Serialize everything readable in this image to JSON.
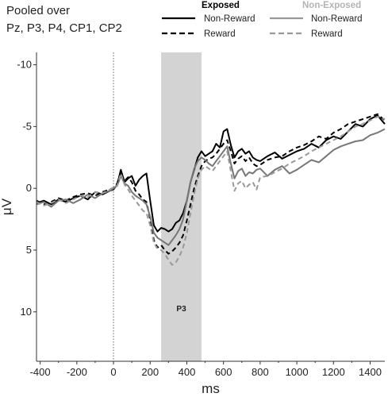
{
  "chart_data": {
    "type": "line",
    "title_lines": [
      "Pooled over",
      "Pz, P3, P4, CP1, CP2"
    ],
    "xlabel": "ms",
    "ylabel": "μV",
    "xlim": [
      -420,
      1480
    ],
    "ylim": [
      14,
      -11
    ],
    "y_inverted": true,
    "x_ticks": [
      -400,
      -200,
      0,
      200,
      400,
      600,
      800,
      1000,
      1200,
      1400
    ],
    "y_ticks": [
      -10,
      -5,
      0,
      5,
      10
    ],
    "shaded_band": {
      "x_start": 260,
      "x_end": 480,
      "label": "P3",
      "color": "#d3d3d3"
    },
    "vertical_marker_x": 0,
    "grid": false,
    "legend": {
      "placement": "top-right",
      "groups": [
        {
          "heading": "Exposed",
          "heading_color": "#000000",
          "entries": [
            {
              "label": "Non-Reward",
              "style": "solid"
            },
            {
              "label": "Reward",
              "style": "dashed"
            }
          ]
        },
        {
          "heading": "Non-Exposed",
          "heading_color": "#b3b3b3",
          "entries": [
            {
              "label": "Non-Reward",
              "style": "solid"
            },
            {
              "label": "Reward",
              "style": "dashed"
            }
          ]
        }
      ]
    },
    "series": [
      {
        "group": "Exposed",
        "condition": "Non-Reward",
        "color": "#000000",
        "style": "solid",
        "x": [
          -420,
          -380,
          -340,
          -300,
          -260,
          -220,
          -180,
          -140,
          -100,
          -60,
          -20,
          0,
          20,
          40,
          60,
          80,
          100,
          120,
          140,
          160,
          180,
          200,
          220,
          240,
          260,
          280,
          300,
          320,
          340,
          360,
          380,
          400,
          420,
          440,
          460,
          480,
          500,
          520,
          540,
          560,
          580,
          600,
          620,
          640,
          660,
          680,
          700,
          720,
          740,
          760,
          780,
          800,
          840,
          880,
          920,
          960,
          1000,
          1040,
          1080,
          1120,
          1160,
          1200,
          1240,
          1280,
          1320,
          1360,
          1400,
          1440,
          1480
        ],
        "y": [
          1.2,
          1.0,
          1.3,
          0.9,
          1.1,
          0.8,
          0.6,
          0.9,
          0.3,
          0.5,
          0.2,
          0.1,
          -0.3,
          -1.5,
          -0.5,
          -0.8,
          -1.0,
          -0.2,
          -0.7,
          -1.0,
          -1.2,
          1.0,
          3.0,
          3.5,
          3.2,
          3.3,
          3.5,
          3.3,
          2.8,
          2.6,
          2.0,
          1.0,
          -0.5,
          -1.5,
          -2.5,
          -3.0,
          -2.6,
          -2.8,
          -3.0,
          -3.6,
          -3.3,
          -4.6,
          -4.8,
          -3.5,
          -2.5,
          -3.0,
          -3.2,
          -2.8,
          -3.0,
          -2.5,
          -2.3,
          -2.2,
          -2.6,
          -2.9,
          -2.4,
          -2.7,
          -3.0,
          -3.2,
          -3.6,
          -3.3,
          -3.9,
          -4.2,
          -4.0,
          -4.6,
          -5.2,
          -5.0,
          -5.6,
          -5.9,
          -5.2
        ]
      },
      {
        "group": "Exposed",
        "condition": "Reward",
        "color": "#000000",
        "style": "dashed",
        "x": [
          -420,
          -380,
          -340,
          -300,
          -260,
          -220,
          -180,
          -140,
          -100,
          -60,
          -20,
          0,
          20,
          40,
          60,
          80,
          100,
          120,
          140,
          160,
          180,
          200,
          220,
          240,
          260,
          280,
          300,
          320,
          340,
          360,
          380,
          400,
          420,
          440,
          460,
          480,
          500,
          520,
          540,
          560,
          580,
          600,
          620,
          640,
          660,
          680,
          700,
          720,
          740,
          760,
          780,
          800,
          840,
          880,
          920,
          960,
          1000,
          1040,
          1080,
          1120,
          1160,
          1200,
          1240,
          1280,
          1320,
          1360,
          1400,
          1440,
          1480
        ],
        "y": [
          1.0,
          1.3,
          1.1,
          0.8,
          1.0,
          0.7,
          0.5,
          0.4,
          0.6,
          0.3,
          0.1,
          0.0,
          -0.4,
          -1.3,
          -0.6,
          -0.9,
          -0.5,
          0.2,
          0.5,
          0.9,
          1.1,
          2.5,
          4.2,
          4.8,
          4.6,
          5.0,
          5.3,
          5.1,
          4.8,
          4.4,
          3.8,
          2.6,
          1.3,
          0.0,
          -1.0,
          -1.8,
          -2.2,
          -2.4,
          -2.5,
          -2.8,
          -3.2,
          -3.6,
          -3.9,
          -3.0,
          -2.0,
          -2.4,
          -2.6,
          -2.2,
          -2.5,
          -2.0,
          -1.8,
          -1.9,
          -2.3,
          -2.5,
          -2.6,
          -3.0,
          -3.3,
          -3.5,
          -3.8,
          -4.2,
          -4.0,
          -4.5,
          -4.8,
          -5.2,
          -5.4,
          -5.6,
          -5.8,
          -6.0,
          -5.5
        ]
      },
      {
        "group": "Non-Exposed",
        "condition": "Non-Reward",
        "color": "#777777",
        "style": "solid",
        "x": [
          -420,
          -380,
          -340,
          -300,
          -260,
          -220,
          -180,
          -140,
          -100,
          -60,
          -20,
          0,
          20,
          40,
          60,
          80,
          100,
          120,
          140,
          160,
          180,
          200,
          220,
          240,
          260,
          280,
          300,
          320,
          340,
          360,
          380,
          400,
          420,
          440,
          460,
          480,
          500,
          520,
          540,
          560,
          580,
          600,
          620,
          640,
          660,
          680,
          700,
          720,
          740,
          760,
          780,
          800,
          840,
          880,
          920,
          960,
          1000,
          1040,
          1080,
          1120,
          1160,
          1200,
          1240,
          1280,
          1320,
          1360,
          1400,
          1440,
          1480
        ],
        "y": [
          1.3,
          1.1,
          1.5,
          1.0,
          0.9,
          1.2,
          0.9,
          0.5,
          0.8,
          0.4,
          0.2,
          0.0,
          -0.2,
          -1.0,
          -0.4,
          -0.2,
          0.3,
          0.6,
          0.8,
          1.0,
          1.3,
          2.3,
          3.6,
          4.0,
          4.2,
          4.4,
          4.6,
          4.2,
          3.8,
          3.3,
          2.5,
          1.0,
          -0.5,
          -1.6,
          -2.2,
          -2.5,
          -2.3,
          -2.0,
          -1.8,
          -2.2,
          -2.6,
          -3.0,
          -3.4,
          -2.0,
          -0.8,
          -1.4,
          -1.6,
          -1.0,
          -1.3,
          -1.2,
          -1.5,
          -1.6,
          -1.0,
          -1.5,
          -1.8,
          -1.2,
          -1.5,
          -1.9,
          -2.3,
          -2.1,
          -2.6,
          -3.1,
          -3.4,
          -3.6,
          -3.8,
          -3.9,
          -4.3,
          -4.5,
          -4.8
        ]
      },
      {
        "group": "Non-Exposed",
        "condition": "Reward",
        "color": "#999999",
        "style": "dashed",
        "x": [
          -420,
          -380,
          -340,
          -300,
          -260,
          -220,
          -180,
          -140,
          -100,
          -60,
          -20,
          0,
          20,
          40,
          60,
          80,
          100,
          120,
          140,
          160,
          180,
          200,
          220,
          240,
          260,
          280,
          300,
          320,
          340,
          360,
          380,
          400,
          420,
          440,
          460,
          480,
          500,
          520,
          540,
          560,
          580,
          600,
          620,
          640,
          660,
          680,
          700,
          720,
          740,
          760,
          780,
          800,
          840,
          880,
          920,
          960,
          1000,
          1040,
          1080,
          1120,
          1160,
          1200,
          1240,
          1280,
          1320,
          1360,
          1400,
          1440,
          1480
        ],
        "y": [
          1.1,
          1.4,
          1.2,
          0.9,
          1.2,
          0.9,
          0.6,
          0.7,
          0.3,
          0.4,
          0.1,
          -0.1,
          -0.2,
          -1.2,
          -0.3,
          0.1,
          0.6,
          1.0,
          1.4,
          1.8,
          2.0,
          3.0,
          4.4,
          4.9,
          5.0,
          5.3,
          5.8,
          6.2,
          6.0,
          5.5,
          4.8,
          3.6,
          2.0,
          0.5,
          -0.8,
          -1.5,
          -1.8,
          -1.6,
          -1.4,
          -1.8,
          -2.2,
          -2.6,
          -3.0,
          -1.4,
          0.2,
          -0.4,
          -0.6,
          0.0,
          -0.3,
          -0.5,
          0.1,
          -0.9,
          -1.0,
          -1.3,
          -1.6,
          -2.0,
          -2.3,
          -2.6,
          -3.0,
          -3.3,
          -3.6,
          -3.9,
          -4.2,
          -4.6,
          -5.0,
          -5.2,
          -5.5,
          -5.8,
          -5.6
        ]
      }
    ]
  }
}
